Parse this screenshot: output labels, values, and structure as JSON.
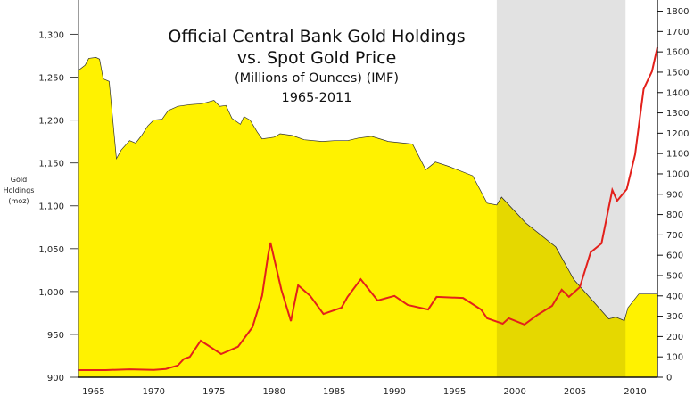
{
  "chart_data": {
    "type": "area",
    "title": "Official Central Bank Gold Holdings",
    "subtitle": "vs. Spot Gold Price",
    "subtitle2": "(Millions of Ounces) (IMF)",
    "subtitle3": "1965-2011",
    "ylabel": [
      "Gold",
      "Holdings",
      "(moz)"
    ],
    "xlim": [
      1963.75,
      2011.85
    ],
    "ylim_left": [
      900,
      1340
    ],
    "ylim_right": [
      0,
      1855
    ],
    "x_ticks": [
      "1965",
      "1970",
      "1975",
      "1980",
      "1985",
      "1990",
      "1995",
      "2000",
      "2005",
      "2010"
    ],
    "y_left_ticks": [
      "900",
      "950",
      "1,000",
      "1,050",
      "1,100",
      "1,150",
      "1,200",
      "1,250",
      "1,300"
    ],
    "y_right_ticks": [
      "0",
      "100",
      "200",
      "300",
      "400",
      "500",
      "600",
      "700",
      "800",
      "900",
      "1000",
      "1100",
      "1200",
      "1300",
      "1400",
      "1500",
      "1600",
      "1700",
      "1800"
    ],
    "shaded_region": {
      "x": [
        1998.5,
        2009.2
      ],
      "color": "#e2e2e2"
    },
    "colors": {
      "holdings_fill": "#fff200",
      "holdings_fill_shaded": "#e5d800",
      "price_line": "#e3201b"
    },
    "series": [
      {
        "name": "Official Central Bank Gold Holdings (moz)",
        "axis": "left",
        "x": [
          1963.75,
          1964.3,
          1964.6,
          1965.2,
          1965.5,
          1965.8,
          1966.3,
          1966.9,
          1967.3,
          1968.0,
          1968.5,
          1969.0,
          1969.5,
          1970.0,
          1970.7,
          1971.2,
          1972.0,
          1973.0,
          1974.0,
          1975.0,
          1975.5,
          1976.0,
          1976.5,
          1977.2,
          1977.5,
          1978.0,
          1978.6,
          1979.0,
          1980.0,
          1980.5,
          1981.5,
          1982.5,
          1984.0,
          1985.0,
          1986.1,
          1987.0,
          1988.1,
          1989.5,
          1991.5,
          1992.6,
          1993.4,
          1994.5,
          1996.5,
          1997.7,
          1998.5,
          1998.9,
          2000.9,
          2003.4,
          2004.9,
          2007.8,
          2008.4,
          2009.1,
          2009.4,
          2010.3,
          2011.85
        ],
        "values": [
          1258,
          1264,
          1272,
          1273,
          1271,
          1248,
          1245,
          1155,
          1165,
          1176,
          1173,
          1182,
          1193,
          1200,
          1201,
          1211,
          1216,
          1218,
          1219,
          1223,
          1216,
          1217,
          1202,
          1195,
          1204,
          1200,
          1186,
          1178,
          1180,
          1184,
          1182,
          1177,
          1175,
          1176,
          1176,
          1179,
          1181,
          1175,
          1172,
          1142,
          1151,
          1146,
          1135,
          1103,
          1101,
          1110,
          1080,
          1052,
          1014,
          968,
          970,
          966,
          981,
          997,
          997
        ]
      },
      {
        "name": "Spot Gold Price (USD/oz)",
        "axis": "right",
        "x": [
          1963.75,
          1966,
          1968,
          1970,
          1971,
          1972,
          1972.5,
          1973,
          1973.9,
          1975.6,
          1977,
          1978.2,
          1979,
          1979.5,
          1979.7,
          1980.6,
          1981.4,
          1982.0,
          1983,
          1984.1,
          1985.6,
          1986.1,
          1987.2,
          1988.6,
          1990.0,
          1991.1,
          1992.8,
          1993.5,
          1995.7,
          1997.2,
          1997.7,
          1999.0,
          1999.5,
          2000.8,
          2001.9,
          2003.1,
          2003.9,
          2004.5,
          2005.4,
          2006.3,
          2007.2,
          2008.1,
          2008.5,
          2009.3,
          2010.0,
          2010.7,
          2011.4,
          2011.85
        ],
        "values": [
          35,
          35,
          39,
          36,
          41,
          58,
          90,
          100,
          180,
          114,
          150,
          246,
          400,
          600,
          662,
          430,
          276,
          452,
          400,
          311,
          342,
          395,
          482,
          377,
          400,
          355,
          333,
          395,
          390,
          333,
          290,
          263,
          290,
          259,
          307,
          351,
          430,
          395,
          443,
          614,
          658,
          921,
          868,
          925,
          1096,
          1417,
          1504,
          1623
        ]
      }
    ]
  }
}
